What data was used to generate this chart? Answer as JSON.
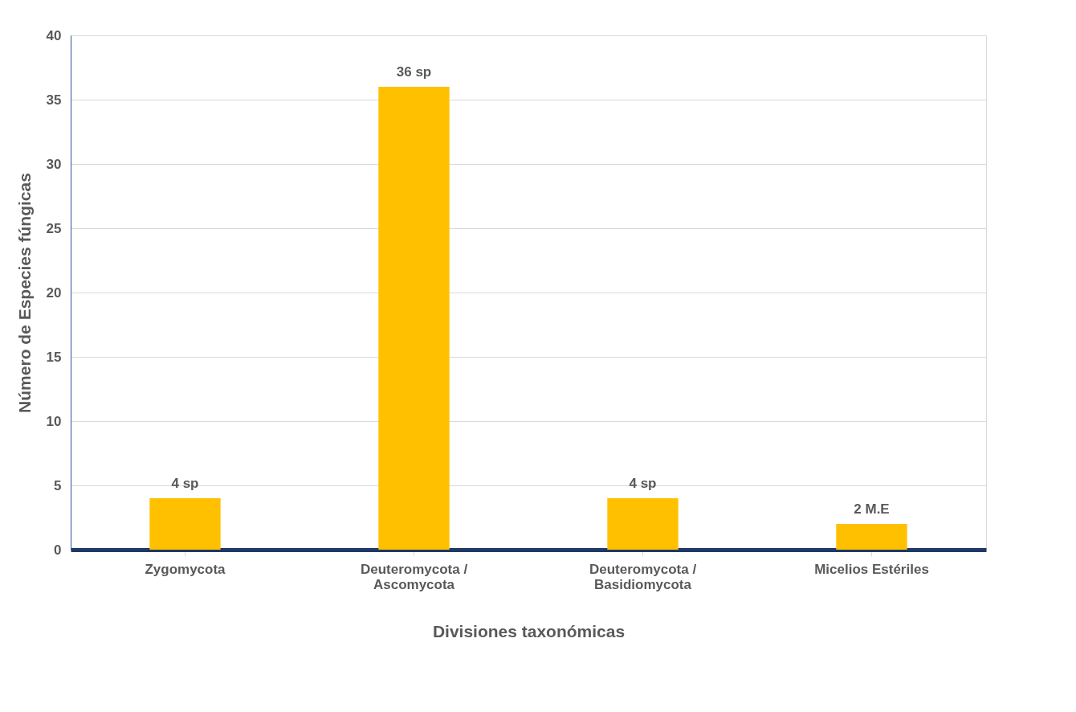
{
  "chart_data": {
    "type": "bar",
    "xlabel": "Divisiones taxonómicas",
    "ylabel": "Número de Especies fúngicas",
    "categories": [
      "Zygomycota",
      "Deuteromycota / Ascomycota",
      "Deuteromycota / Basidiomycota",
      "Micelios Estériles"
    ],
    "values": [
      4,
      36,
      4,
      2
    ],
    "value_labels": [
      "4 sp",
      "36 sp",
      "4 sp",
      "2 M.E"
    ],
    "color": "#ffc000",
    "ylim": [
      0,
      40
    ],
    "yticks": [
      0,
      5,
      10,
      15,
      20,
      25,
      30,
      35,
      40
    ],
    "grid": "y"
  }
}
